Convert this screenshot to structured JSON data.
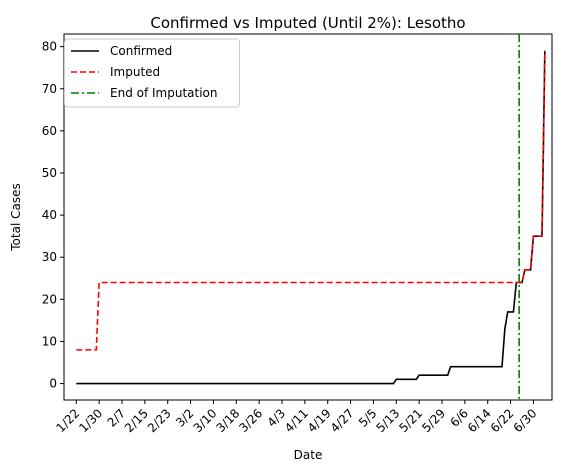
{
  "chart_data": {
    "type": "line",
    "title": "Confirmed vs Imputed (Until 2%): Lesotho",
    "xlabel": "Date",
    "ylabel": "Total Cases",
    "x_tick_labels": [
      "1/22",
      "1/30",
      "2/7",
      "2/15",
      "2/23",
      "3/2",
      "3/10",
      "3/18",
      "3/26",
      "4/3",
      "4/11",
      "4/19",
      "4/27",
      "5/5",
      "5/13",
      "5/21",
      "5/29",
      "6/6",
      "6/14",
      "6/22",
      "6/30"
    ],
    "x_range_days": [
      -4.3,
      166.5
    ],
    "ylim": [
      -3.9,
      83.0
    ],
    "y_ticks": [
      0,
      10,
      20,
      30,
      40,
      50,
      60,
      70,
      80
    ],
    "legend_position": "top-left",
    "grid": false,
    "series": [
      {
        "name": "Confirmed",
        "style": "solid",
        "color": "#000000",
        "points": [
          [
            0,
            0
          ],
          [
            111,
            0
          ],
          [
            112,
            1
          ],
          [
            119,
            1
          ],
          [
            120,
            2
          ],
          [
            130,
            2
          ],
          [
            131,
            4
          ],
          [
            149,
            4
          ],
          [
            150,
            13
          ],
          [
            151,
            17
          ],
          [
            153,
            17
          ],
          [
            154,
            24
          ],
          [
            156,
            24
          ],
          [
            157,
            27
          ],
          [
            159,
            27
          ],
          [
            160,
            35
          ],
          [
            163,
            35
          ],
          [
            164,
            79
          ]
        ]
      },
      {
        "name": "Imputed",
        "style": "dashed",
        "color": "#ff0000",
        "points": [
          [
            0,
            8
          ],
          [
            7,
            8
          ],
          [
            8,
            24
          ],
          [
            156,
            24
          ],
          [
            157,
            27
          ],
          [
            159,
            27
          ],
          [
            160,
            35
          ],
          [
            163,
            35
          ],
          [
            164,
            79
          ]
        ]
      }
    ],
    "vlines": [
      {
        "name": "End of Imputation",
        "x": 155,
        "style": "dashdot",
        "color": "#008000"
      }
    ]
  }
}
